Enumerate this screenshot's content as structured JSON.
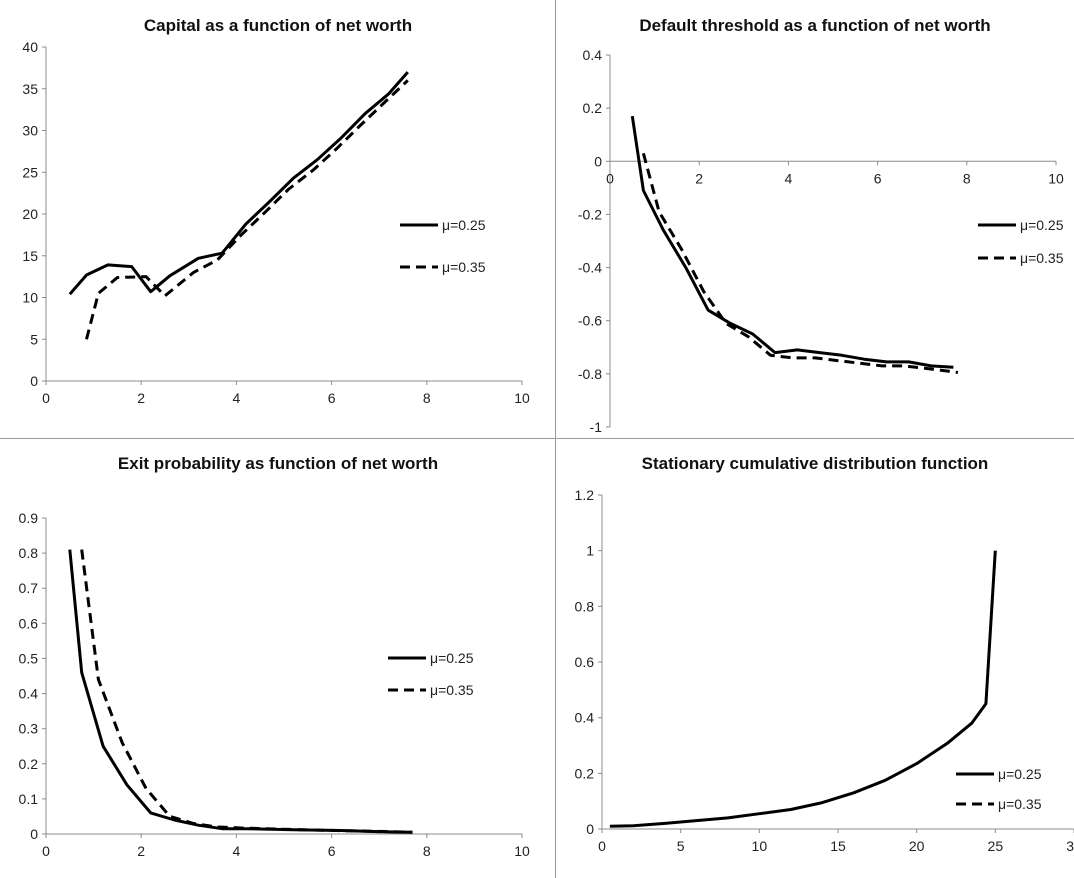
{
  "chart_data": [
    {
      "type": "line",
      "title": "Capital as a function of net worth",
      "xlabel": "",
      "ylabel": "",
      "xlim": [
        0,
        10
      ],
      "ylim": [
        0,
        40
      ],
      "xticks": [
        0,
        2,
        4,
        6,
        8,
        10
      ],
      "yticks": [
        0,
        5,
        10,
        15,
        20,
        25,
        30,
        35,
        40
      ],
      "xtick_labels": [
        "0",
        "2",
        "4",
        "6",
        "8",
        "10"
      ],
      "ytick_labels": [
        "0",
        "5",
        "10",
        "15",
        "20",
        "25",
        "30",
        "35",
        "40"
      ],
      "grid": false,
      "legend_position": "right",
      "series": [
        {
          "name": "μ=0.25",
          "style": "solid",
          "x": [
            0.5,
            0.85,
            1.3,
            1.8,
            2.2,
            2.6,
            3.2,
            3.7,
            4.2,
            4.7,
            5.2,
            5.7,
            6.2,
            6.7,
            7.2,
            7.6
          ],
          "y": [
            10.4,
            12.7,
            13.9,
            13.7,
            10.7,
            12.6,
            14.7,
            15.3,
            18.8,
            21.5,
            24.3,
            26.5,
            29.1,
            32.0,
            34.4,
            37.0
          ]
        },
        {
          "name": "μ=0.35",
          "style": "dashed",
          "x": [
            0.85,
            1.1,
            1.5,
            2.1,
            2.5,
            3.1,
            3.6,
            4.1,
            4.6,
            5.1,
            5.6,
            6.1,
            6.6,
            7.1,
            7.6
          ],
          "y": [
            5.0,
            10.5,
            12.4,
            12.5,
            10.2,
            13.0,
            14.5,
            17.5,
            20.2,
            23.0,
            25.2,
            27.8,
            30.6,
            33.3,
            36.0
          ]
        }
      ]
    },
    {
      "type": "line",
      "title": "Default threshold as a function of net worth",
      "xlabel": "",
      "ylabel": "",
      "xlim": [
        0,
        10
      ],
      "ylim": [
        -1,
        0.4
      ],
      "xticks": [
        0,
        2,
        4,
        6,
        8,
        10
      ],
      "yticks": [
        -1,
        -0.8,
        -0.6,
        -0.4,
        -0.2,
        0,
        0.2,
        0.4
      ],
      "xtick_labels": [
        "0",
        "2",
        "4",
        "6",
        "8",
        "10"
      ],
      "ytick_labels": [
        "-1",
        "-0.8",
        "-0.6",
        "-0.4",
        "-0.2",
        "0",
        "0.2",
        "0.4"
      ],
      "grid": false,
      "legend_position": "right",
      "series": [
        {
          "name": "μ=0.25",
          "style": "solid",
          "x": [
            0.5,
            0.75,
            1.2,
            1.7,
            2.2,
            2.7,
            3.2,
            3.7,
            4.2,
            4.7,
            5.2,
            5.7,
            6.2,
            6.7,
            7.2,
            7.7
          ],
          "y": [
            0.17,
            -0.11,
            -0.26,
            -0.4,
            -0.56,
            -0.61,
            -0.65,
            -0.72,
            -0.71,
            -0.72,
            -0.73,
            -0.745,
            -0.755,
            -0.755,
            -0.77,
            -0.775
          ]
        },
        {
          "name": "μ=0.35",
          "style": "dashed",
          "x": [
            0.75,
            1.1,
            1.6,
            2.1,
            2.6,
            3.1,
            3.6,
            4.1,
            4.6,
            5.1,
            5.6,
            6.1,
            6.6,
            7.1,
            7.6,
            7.8
          ],
          "y": [
            0.03,
            -0.19,
            -0.33,
            -0.49,
            -0.61,
            -0.66,
            -0.73,
            -0.74,
            -0.74,
            -0.75,
            -0.76,
            -0.77,
            -0.77,
            -0.78,
            -0.79,
            -0.795
          ]
        }
      ]
    },
    {
      "type": "line",
      "title": "Exit probability as function of net worth",
      "xlabel": "",
      "ylabel": "",
      "xlim": [
        0,
        10
      ],
      "ylim": [
        0,
        0.9
      ],
      "xticks": [
        0,
        2,
        4,
        6,
        8,
        10
      ],
      "yticks": [
        0,
        0.1,
        0.2,
        0.3,
        0.4,
        0.5,
        0.6,
        0.7,
        0.8,
        0.9
      ],
      "xtick_labels": [
        "0",
        "2",
        "4",
        "6",
        "8",
        "10"
      ],
      "ytick_labels": [
        "0",
        "0.1",
        "0.2",
        "0.3",
        "0.4",
        "0.5",
        "0.6",
        "0.7",
        "0.8",
        "0.9"
      ],
      "grid": false,
      "legend_position": "right",
      "series": [
        {
          "name": "μ=0.25",
          "style": "solid",
          "x": [
            0.5,
            0.75,
            1.2,
            1.7,
            2.2,
            2.7,
            3.2,
            3.7,
            4.2,
            5.2,
            6.2,
            6.7,
            7.2,
            7.7
          ],
          "y": [
            0.81,
            0.46,
            0.25,
            0.14,
            0.06,
            0.04,
            0.025,
            0.015,
            0.015,
            0.012,
            0.01,
            0.008,
            0.006,
            0.005
          ]
        },
        {
          "name": "μ=0.35",
          "style": "dashed",
          "x": [
            0.75,
            1.1,
            1.6,
            2.1,
            2.6,
            3.1,
            3.6,
            4.1,
            5.1,
            6.1,
            7.1,
            7.7
          ],
          "y": [
            0.81,
            0.44,
            0.26,
            0.13,
            0.05,
            0.03,
            0.02,
            0.017,
            0.013,
            0.01,
            0.007,
            0.005
          ]
        }
      ]
    },
    {
      "type": "line",
      "title": "Stationary cumulative distribution function",
      "xlabel": "",
      "ylabel": "",
      "xlim": [
        0,
        30
      ],
      "ylim": [
        0,
        1.2
      ],
      "xticks": [
        0,
        5,
        10,
        15,
        20,
        25,
        30
      ],
      "yticks": [
        0,
        0.2,
        0.4,
        0.6,
        0.8,
        1,
        1.2
      ],
      "xtick_labels": [
        "0",
        "5",
        "10",
        "15",
        "20",
        "25",
        "30"
      ],
      "ytick_labels": [
        "0",
        "0.2",
        "0.4",
        "0.6",
        "0.8",
        "1",
        "1.2"
      ],
      "grid": false,
      "legend_position": "bottom-right",
      "series": [
        {
          "name": "μ=0.25",
          "style": "solid",
          "x": [
            0.5,
            2,
            4,
            6,
            8,
            10,
            12,
            14,
            16,
            18,
            20,
            22,
            23.5,
            24.4,
            25
          ],
          "y": [
            0.01,
            0.012,
            0.02,
            0.03,
            0.04,
            0.055,
            0.07,
            0.095,
            0.13,
            0.175,
            0.235,
            0.31,
            0.38,
            0.45,
            1.0
          ]
        },
        {
          "name": "μ=0.35",
          "style": "dashed",
          "x": [],
          "y": []
        }
      ]
    }
  ]
}
